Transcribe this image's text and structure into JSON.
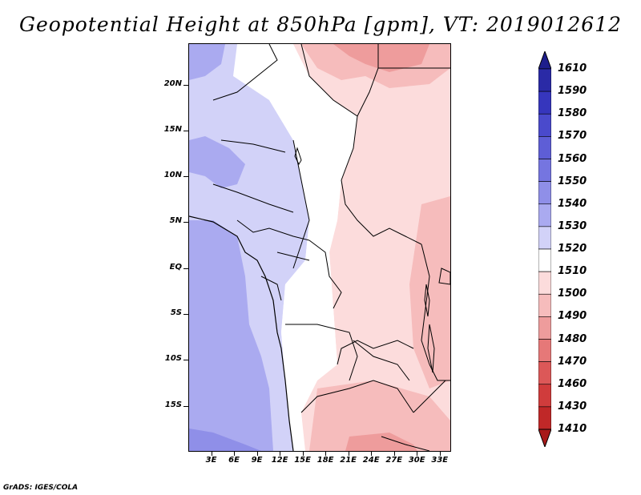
{
  "title": "Geopotential Height at 850hPa [gpm], VT: 2019012612",
  "footer": "GrADS: IGES/COLA",
  "lat_labels": [
    {
      "text": "20N",
      "lat": 20
    },
    {
      "text": "15N",
      "lat": 15
    },
    {
      "text": "10N",
      "lat": 10
    },
    {
      "text": "5N",
      "lat": 5
    },
    {
      "text": "EQ",
      "lat": 0
    },
    {
      "text": "5S",
      "lat": -5
    },
    {
      "text": "10S",
      "lat": -10
    },
    {
      "text": "15S",
      "lat": -15
    }
  ],
  "lon_labels": [
    {
      "text": "3E",
      "lon": 3
    },
    {
      "text": "6E",
      "lon": 6
    },
    {
      "text": "9E",
      "lon": 9
    },
    {
      "text": "12E",
      "lon": 12
    },
    {
      "text": "15E",
      "lon": 15
    },
    {
      "text": "18E",
      "lon": 18
    },
    {
      "text": "21E",
      "lon": 21
    },
    {
      "text": "24E",
      "lon": 24
    },
    {
      "text": "27E",
      "lon": 27
    },
    {
      "text": "30E",
      "lon": 30
    },
    {
      "text": "33E",
      "lon": 33
    }
  ],
  "map_extent": {
    "lon_min": 0,
    "lon_max": 34.5,
    "lat_min": -20,
    "lat_max": 24.5
  },
  "colorbar": [
    {
      "label": "1610",
      "color": "#1e1e8c"
    },
    {
      "label": "1590",
      "color": "#2a2aa6"
    },
    {
      "label": "1580",
      "color": "#3636bd"
    },
    {
      "label": "1570",
      "color": "#4a4acc"
    },
    {
      "label": "1560",
      "color": "#5e5ed6"
    },
    {
      "label": "1550",
      "color": "#7575e0"
    },
    {
      "label": "1540",
      "color": "#8f8fe8"
    },
    {
      "label": "1530",
      "color": "#aaaaf0"
    },
    {
      "label": "1520",
      "color": "#d2d2f8"
    },
    {
      "label": "1510",
      "color": "#ffffff"
    },
    {
      "label": "1500",
      "color": "#fcdcdc"
    },
    {
      "label": "1490",
      "color": "#f6bcbc"
    },
    {
      "label": "1480",
      "color": "#ee9c9c"
    },
    {
      "label": "1470",
      "color": "#e67878"
    },
    {
      "label": "1460",
      "color": "#dc5858"
    },
    {
      "label": "1430",
      "color": "#d03c3c"
    },
    {
      "label": "1410",
      "color": "#c02828"
    },
    {
      "label": "",
      "color": "#a81a1a"
    }
  ]
}
